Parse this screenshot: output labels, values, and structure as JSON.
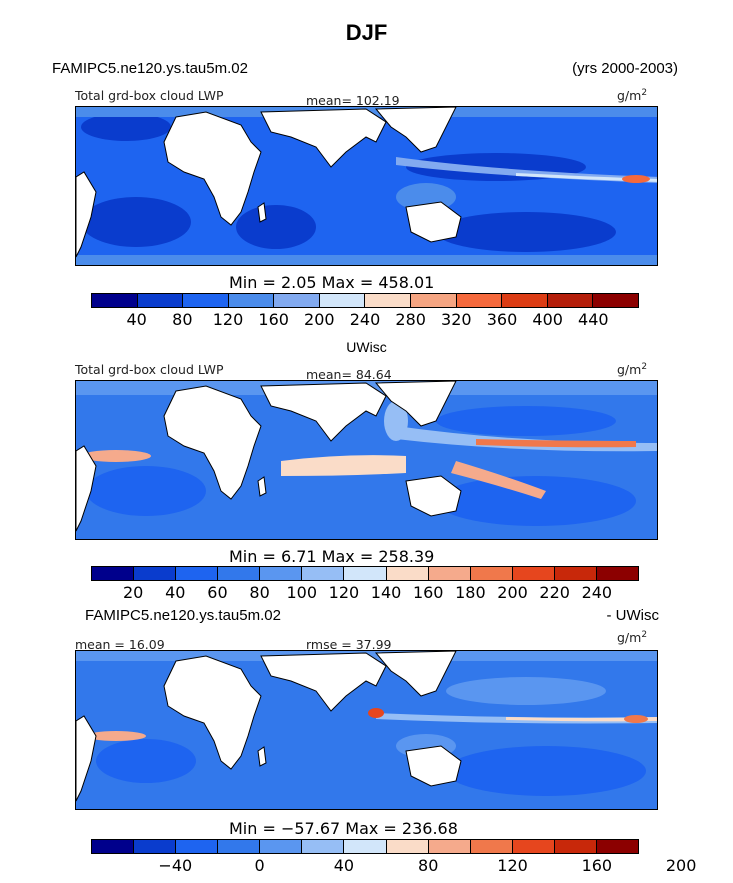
{
  "title": "DJF",
  "top_left": "FAMIPC5.ne120.ys.tau5m.02",
  "top_right": "(yrs 2000-2003)",
  "panels": [
    {
      "left_label": "Total grd-box cloud LWP",
      "center_label": "mean= 102.19",
      "unit": "g/m",
      "unit_sup": "2",
      "minmax": "Min =    2.05 Max = 458.01",
      "ticks": [
        "40",
        "80",
        "120",
        "160",
        "200",
        "240",
        "280",
        "320",
        "360",
        "400",
        "440"
      ],
      "colors": [
        "#00008c",
        "#0a3ccd",
        "#1e64f0",
        "#4b8ceb",
        "#82aaf0",
        "#d2e6fa",
        "#fadcc8",
        "#f5a582",
        "#f5693c",
        "#dc3c14",
        "#b41e0a",
        "#8c0000"
      ]
    },
    {
      "subtitle": "UWisc",
      "left_label": "Total grd-box cloud LWP",
      "center_label": "mean=  84.64",
      "unit": "g/m",
      "unit_sup": "2",
      "minmax": "Min =    6.71 Max = 258.39",
      "ticks": [
        "20",
        "40",
        "60",
        "80",
        "100",
        "120",
        "140",
        "160",
        "180",
        "200",
        "220",
        "240"
      ],
      "colors": [
        "#00008c",
        "#0a3ccd",
        "#1e64f0",
        "#3278eb",
        "#5a96f0",
        "#96bef5",
        "#d2e6fa",
        "#fadcc8",
        "#f5aa8c",
        "#f0784b",
        "#e6461e",
        "#c8280a",
        "#8c0000"
      ]
    },
    {
      "subtitle_left": "FAMIPC5.ne120.ys.tau5m.02",
      "subtitle_right": "- UWisc",
      "left_label": "mean =  16.09",
      "center_label": "rmse =  37.99",
      "unit": "g/m",
      "unit_sup": "2",
      "minmax": "Min = −57.67 Max = 236.68",
      "ticks": [
        "−40",
        "0",
        "40",
        "80",
        "120",
        "160",
        "200"
      ],
      "colors": [
        "#00008c",
        "#0a3ccd",
        "#1e64f0",
        "#3278eb",
        "#5a96f0",
        "#96bef5",
        "#d2e6fa",
        "#fadcc8",
        "#f5aa8c",
        "#f0784b",
        "#e6461e",
        "#c8280a",
        "#8c0000"
      ]
    }
  ]
}
